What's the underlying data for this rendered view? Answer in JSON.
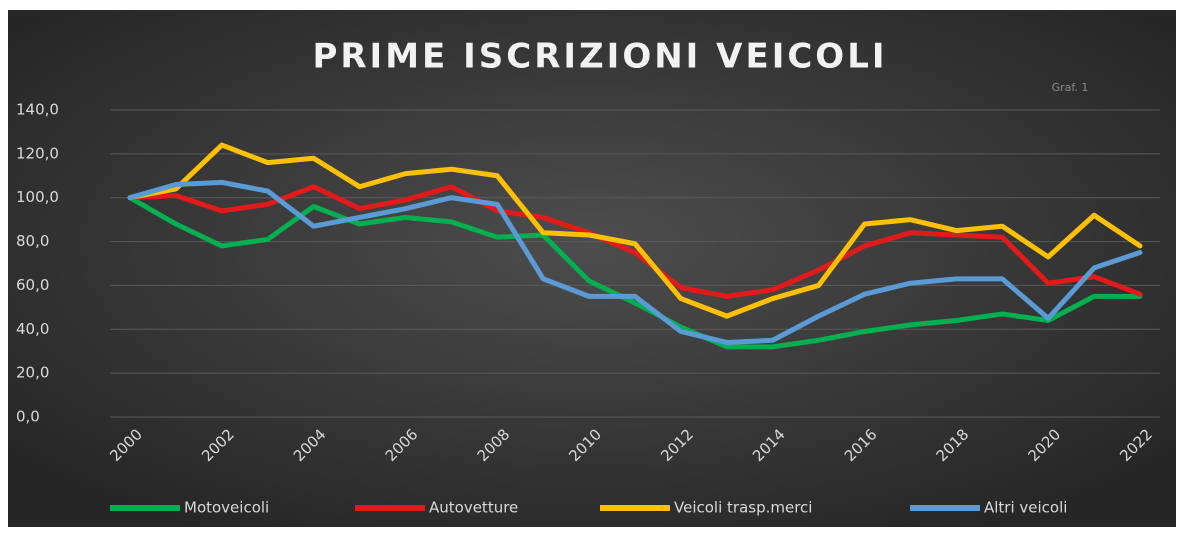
{
  "chart_data": {
    "type": "line",
    "title": "PRIME ISCRIZIONI VEICOLI",
    "annotation": "Graf. 1",
    "x": [
      2000,
      2001,
      2002,
      2003,
      2004,
      2005,
      2006,
      2007,
      2008,
      2009,
      2010,
      2011,
      2012,
      2013,
      2014,
      2015,
      2016,
      2017,
      2018,
      2019,
      2020,
      2021,
      2022
    ],
    "xlim": [
      2000,
      2022
    ],
    "xticks": [
      2000,
      2002,
      2004,
      2006,
      2008,
      2010,
      2012,
      2014,
      2016,
      2018,
      2020,
      2022
    ],
    "ylim": [
      0,
      140
    ],
    "yticks": [
      {
        "value": 0,
        "label": "0,0"
      },
      {
        "value": 20,
        "label": "20,0"
      },
      {
        "value": 40,
        "label": "40,0"
      },
      {
        "value": 60,
        "label": "60,0"
      },
      {
        "value": 80,
        "label": "80,0"
      },
      {
        "value": 100,
        "label": "100,0"
      },
      {
        "value": 120,
        "label": "120,0"
      },
      {
        "value": 140,
        "label": "140,0"
      }
    ],
    "grid": true,
    "legend": "bottom",
    "series": [
      {
        "name": "Motoveicoli",
        "color": "#00b050",
        "values": [
          100,
          88,
          78,
          81,
          96,
          88,
          91,
          89,
          82,
          83,
          62,
          52,
          41,
          32,
          32,
          35,
          39,
          42,
          44,
          47,
          44,
          55,
          55
        ]
      },
      {
        "name": "Autovetture",
        "color": "#e31a1a",
        "values": [
          100,
          101,
          94,
          97,
          105,
          95,
          99,
          105,
          94,
          91,
          84,
          75,
          59,
          55,
          58,
          67,
          78,
          84,
          83,
          82,
          61,
          64,
          56
        ]
      },
      {
        "name": "Veicoli trasp.merci",
        "color": "#ffc000",
        "values": [
          100,
          104,
          124,
          116,
          118,
          105,
          111,
          113,
          110,
          84,
          83,
          79,
          54,
          46,
          54,
          60,
          88,
          90,
          85,
          87,
          73,
          92,
          78
        ]
      },
      {
        "name": "Altri veicoli",
        "color": "#5b9bd5",
        "values": [
          100,
          106,
          107,
          103,
          87,
          91,
          95,
          100,
          97,
          63,
          55,
          55,
          39,
          34,
          35,
          46,
          56,
          61,
          63,
          63,
          45,
          68,
          75
        ]
      }
    ]
  }
}
